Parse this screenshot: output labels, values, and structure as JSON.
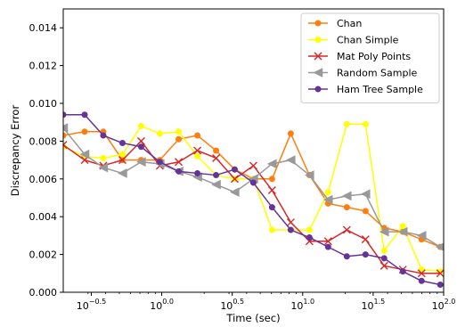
{
  "chart_data": {
    "type": "line",
    "title": "",
    "xlabel": "Time (sec)",
    "ylabel": "Discrepancy Error",
    "xscale": "log10",
    "xlim": [
      0.2,
      100
    ],
    "ylim": [
      0,
      0.015
    ],
    "grid": false,
    "legend_position": "top-right",
    "x_ticks": [
      {
        "value": 0.3162,
        "base": "10",
        "exp": "−0.5"
      },
      {
        "value": 1,
        "base": "10",
        "exp": "0.0"
      },
      {
        "value": 3.162,
        "base": "10",
        "exp": "0.5"
      },
      {
        "value": 10,
        "base": "10",
        "exp": "1.0"
      },
      {
        "value": 31.62,
        "base": "10",
        "exp": "1.5"
      },
      {
        "value": 100,
        "base": "10",
        "exp": "2.0"
      }
    ],
    "y_ticks": [
      {
        "value": 0,
        "label": "0.000"
      },
      {
        "value": 0.002,
        "label": "0.002"
      },
      {
        "value": 0.004,
        "label": "0.004"
      },
      {
        "value": 0.006,
        "label": "0.006"
      },
      {
        "value": 0.008,
        "label": "0.008"
      },
      {
        "value": 0.01,
        "label": "0.010"
      },
      {
        "value": 0.012,
        "label": "0.012"
      },
      {
        "value": 0.014,
        "label": "0.014"
      }
    ],
    "series": [
      {
        "name": "Chan",
        "color": "#ff7f0e",
        "marker": "circle",
        "x": [
          0.2,
          0.2837,
          0.3846,
          0.5263,
          0.7139,
          0.9683,
          1.3183,
          1.7903,
          2.4292,
          3.2917,
          4.4671,
          6.0619,
          8.2279,
          11.1659,
          15.1423,
          20.5631,
          27.9099,
          37.8538,
          51.3686,
          69.7455,
          94.622
        ],
        "y": [
          0.0083,
          0.0085,
          0.0085,
          0.007,
          0.007,
          0.007,
          0.0081,
          0.0083,
          0.0075,
          0.0065,
          0.006,
          0.006,
          0.0084,
          0.0062,
          0.0047,
          0.0045,
          0.0043,
          0.0034,
          0.0032,
          0.0028,
          0.0024
        ]
      },
      {
        "name": "Chan Simple",
        "color": "#ffff00",
        "marker": "circle",
        "x": [
          0.2,
          0.2837,
          0.3846,
          0.5263,
          0.7139,
          0.9683,
          1.3183,
          1.7903,
          2.4292,
          3.2917,
          4.4671,
          6.0619,
          8.2279,
          11.1659,
          15.1423,
          20.5631,
          27.9099,
          37.8538,
          51.3686,
          69.7455,
          94.622
        ],
        "y": [
          0.0077,
          0.0072,
          0.0071,
          0.0073,
          0.0088,
          0.0084,
          0.0085,
          0.0072,
          0.0062,
          0.006,
          0.006,
          0.0033,
          0.0033,
          0.0033,
          0.0053,
          0.0089,
          0.0089,
          0.0022,
          0.0035,
          0.0012,
          0.0011
        ]
      },
      {
        "name": "Mat Poly Points",
        "color": "#d62728",
        "marker": "x",
        "x": [
          0.2,
          0.2837,
          0.3846,
          0.5263,
          0.7139,
          0.9683,
          1.3183,
          1.7903,
          2.4292,
          3.2917,
          4.4671,
          6.0619,
          8.2279,
          11.1659,
          15.1423,
          20.5631,
          27.9099,
          37.8538,
          51.3686,
          69.7455,
          94.622
        ],
        "y": [
          0.0078,
          0.007,
          0.0067,
          0.007,
          0.008,
          0.0067,
          0.0069,
          0.0075,
          0.0071,
          0.006,
          0.0067,
          0.0054,
          0.0037,
          0.0027,
          0.0027,
          0.0033,
          0.0028,
          0.0014,
          0.0012,
          0.001,
          0.001
        ]
      },
      {
        "name": "Random Sample",
        "color": "#999999",
        "marker": "triangle-left",
        "x": [
          0.2,
          0.2837,
          0.3846,
          0.5263,
          0.7139,
          0.9683,
          1.3183,
          1.7903,
          2.4292,
          3.2917,
          4.4671,
          6.0619,
          8.2279,
          11.1659,
          15.1423,
          20.5631,
          27.9099,
          37.8538,
          51.3686,
          69.7455,
          94.622
        ],
        "y": [
          0.0087,
          0.0073,
          0.0066,
          0.0063,
          0.0069,
          0.0068,
          0.0064,
          0.0061,
          0.0057,
          0.0053,
          0.006,
          0.0068,
          0.007,
          0.0062,
          0.0049,
          0.0051,
          0.0052,
          0.0032,
          0.0032,
          0.003,
          0.0024
        ]
      },
      {
        "name": "Ham Tree Sample",
        "color": "#663399",
        "marker": "circle",
        "x": [
          0.2,
          0.2837,
          0.3846,
          0.5263,
          0.7139,
          0.9683,
          1.3183,
          1.7903,
          2.4292,
          3.2917,
          4.4671,
          6.0619,
          8.2279,
          11.1659,
          15.1423,
          20.5631,
          27.9099,
          37.8538,
          51.3686,
          69.7455,
          94.622
        ],
        "y": [
          0.0094,
          0.0094,
          0.0083,
          0.0079,
          0.0077,
          0.0069,
          0.0064,
          0.0063,
          0.0062,
          0.0065,
          0.0058,
          0.0045,
          0.0033,
          0.0029,
          0.0024,
          0.0019,
          0.002,
          0.0018,
          0.0011,
          0.0006,
          0.0004
        ]
      }
    ]
  }
}
